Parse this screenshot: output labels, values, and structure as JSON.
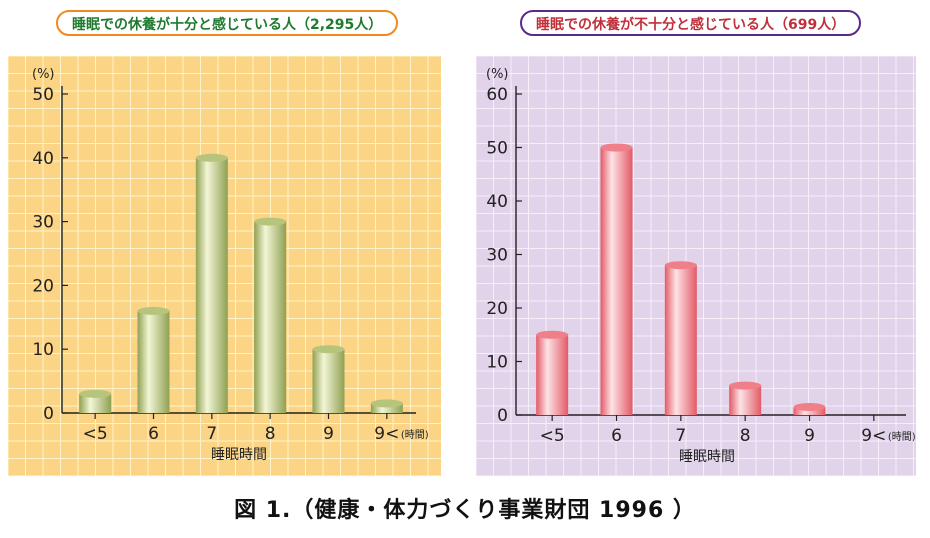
{
  "caption": "図 1.（健康・体力づくり事業財団 1996 ）",
  "colors": {
    "left_bg": "#fcd485",
    "left_grid": "#fff3c8",
    "left_bar_light": "#f3f6d6",
    "left_bar_dark": "#8fa052",
    "left_bar_top": "#b7c47c",
    "right_bg": "#e1d3ea",
    "right_grid": "#f6eef9",
    "right_bar_light": "#fde3e6",
    "right_bar_dark": "#e35a66",
    "right_bar_top": "#ef7f89",
    "left_title_border": "#f08a1d",
    "left_title_text": "#1f7a2e",
    "right_title_border": "#5b2a86",
    "right_title_text": "#c0303a"
  },
  "chart_data": [
    {
      "type": "bar",
      "title": "睡眠での休養が十分と感じている人（2,295人）",
      "ylabel": "(%)",
      "xlabel": "睡眠時間",
      "x_unit": "(時間)",
      "categories": [
        "<5",
        "6",
        "7",
        "8",
        "9",
        "9<"
      ],
      "values": [
        3,
        16,
        40,
        30,
        10,
        1.5
      ],
      "ylim": [
        0,
        50
      ],
      "yticks": [
        0,
        10,
        20,
        30,
        40,
        50
      ],
      "grid": true
    },
    {
      "type": "bar",
      "title": "睡眠での休養が不十分と感じている人（699人）",
      "ylabel": "(%)",
      "xlabel": "睡眠時間",
      "x_unit": "(時間)",
      "categories": [
        "<5",
        "6",
        "7",
        "8",
        "9",
        "9<"
      ],
      "values": [
        15,
        50,
        28,
        5.5,
        1.5,
        0
      ],
      "ylim": [
        0,
        60
      ],
      "yticks": [
        0,
        10,
        20,
        30,
        40,
        50,
        60
      ],
      "grid": true
    }
  ]
}
